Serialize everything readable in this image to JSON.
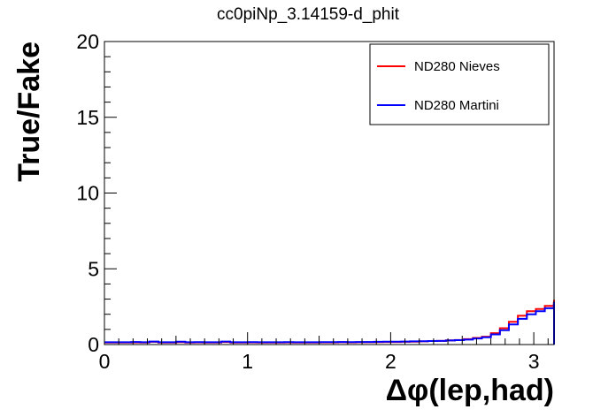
{
  "chart_data": {
    "type": "line",
    "title": "cc0piNp_3.14159-d_phit",
    "xlabel": "Δφ(lep,had)",
    "ylabel": "True/Fake",
    "xlim": [
      0,
      3.14159
    ],
    "ylim": [
      0,
      20
    ],
    "x_ticks": [
      "0",
      "1",
      "2",
      "3"
    ],
    "y_ticks": [
      "0",
      "5",
      "10",
      "15",
      "20"
    ],
    "grid": false,
    "legend_position": "top-right",
    "bin_width": 0.0628,
    "series": [
      {
        "name": "ND280 Nieves",
        "color": "#ff0000",
        "values": [
          0.13,
          0.13,
          0.13,
          0.14,
          0.13,
          0.18,
          0.13,
          0.13,
          0.16,
          0.13,
          0.14,
          0.13,
          0.13,
          0.17,
          0.13,
          0.13,
          0.14,
          0.13,
          0.13,
          0.13,
          0.14,
          0.13,
          0.13,
          0.13,
          0.14,
          0.14,
          0.15,
          0.14,
          0.15,
          0.15,
          0.16,
          0.17,
          0.17,
          0.18,
          0.19,
          0.21,
          0.23,
          0.24,
          0.28,
          0.3,
          0.36,
          0.44,
          0.52,
          0.75,
          1.08,
          1.5,
          1.9,
          2.2,
          2.35,
          2.55,
          2.74,
          2.95
        ]
      },
      {
        "name": "ND280 Martini",
        "color": "#0000ff",
        "values": [
          0.15,
          0.15,
          0.15,
          0.17,
          0.15,
          0.2,
          0.15,
          0.15,
          0.19,
          0.15,
          0.16,
          0.15,
          0.15,
          0.2,
          0.15,
          0.15,
          0.16,
          0.15,
          0.15,
          0.15,
          0.16,
          0.15,
          0.15,
          0.15,
          0.16,
          0.16,
          0.17,
          0.16,
          0.17,
          0.17,
          0.18,
          0.19,
          0.19,
          0.2,
          0.21,
          0.22,
          0.23,
          0.24,
          0.27,
          0.29,
          0.33,
          0.4,
          0.48,
          0.67,
          0.95,
          1.33,
          1.7,
          2.0,
          2.2,
          2.4,
          2.6,
          2.82
        ]
      }
    ]
  }
}
